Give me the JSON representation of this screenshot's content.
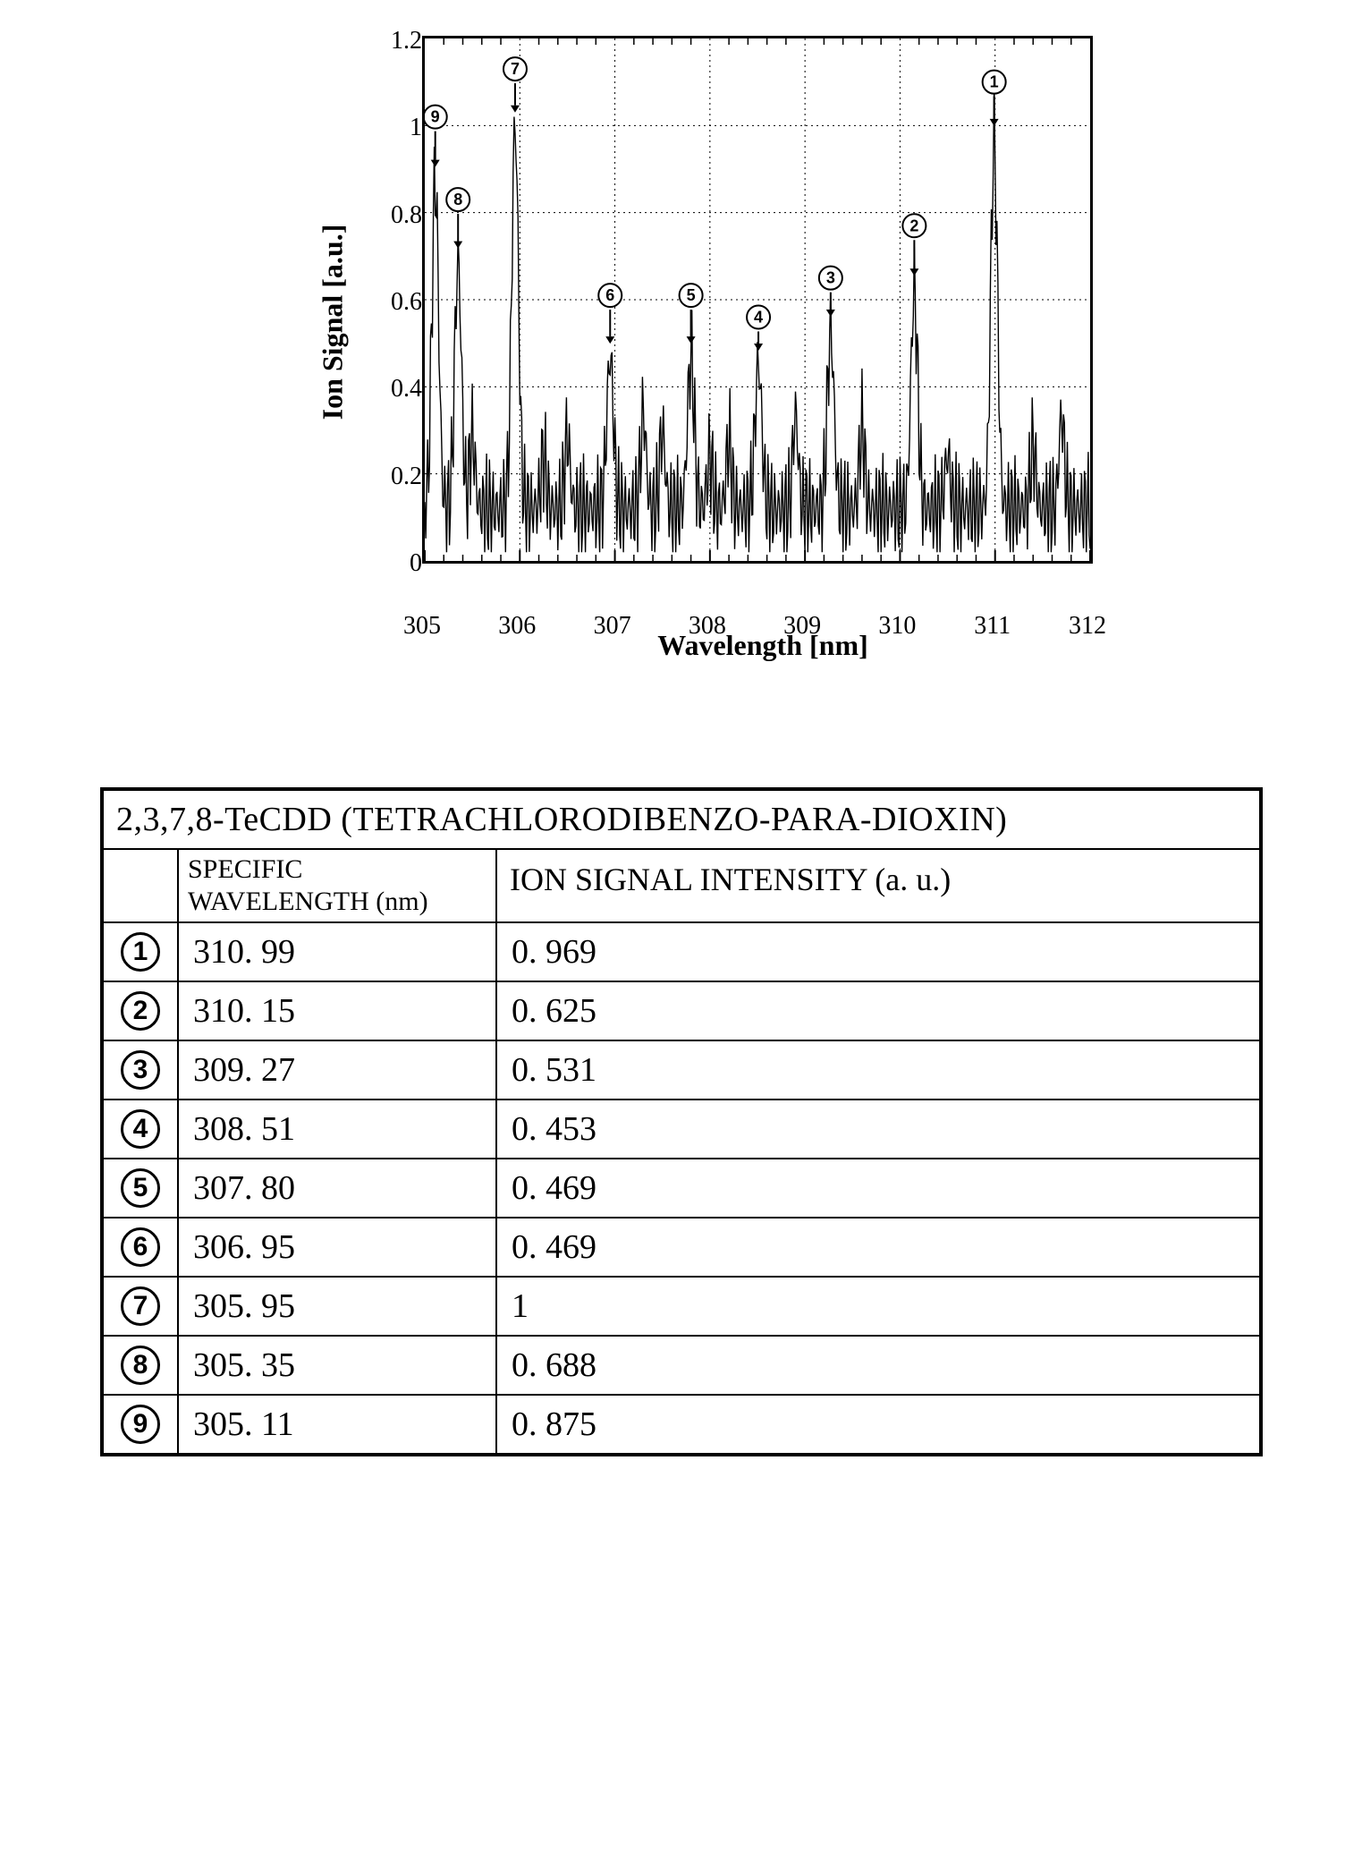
{
  "chart": {
    "type": "line-spectrum",
    "ylabel": "Ion Signal [a.u.]",
    "xlabel": "Wavelength [nm]",
    "xlim": [
      305,
      312
    ],
    "ylim": [
      0,
      1.2
    ],
    "xticks": [
      305,
      306,
      307,
      308,
      309,
      310,
      311,
      312
    ],
    "yticks": [
      0,
      0.2,
      0.4,
      0.6,
      0.8,
      1,
      1.2
    ],
    "grid_color": "#000000",
    "grid_dash": "2,4",
    "line_color": "#000000",
    "line_width": 1.4,
    "background_color": "#ffffff",
    "marker_labels": [
      "①",
      "②",
      "③",
      "④",
      "⑤",
      "⑥",
      "⑦",
      "⑧",
      "⑨"
    ],
    "peaks": [
      {
        "label": "①",
        "wavelength": 310.99,
        "intensity": 0.969,
        "marker_y": 1.1
      },
      {
        "label": "②",
        "wavelength": 310.15,
        "intensity": 0.625,
        "marker_y": 0.77
      },
      {
        "label": "③",
        "wavelength": 309.27,
        "intensity": 0.531,
        "marker_y": 0.65
      },
      {
        "label": "④",
        "wavelength": 308.51,
        "intensity": 0.453,
        "marker_y": 0.56
      },
      {
        "label": "⑤",
        "wavelength": 307.8,
        "intensity": 0.469,
        "marker_y": 0.61
      },
      {
        "label": "⑥",
        "wavelength": 306.95,
        "intensity": 0.469,
        "marker_y": 0.61
      },
      {
        "label": "⑦",
        "wavelength": 305.95,
        "intensity": 1.0,
        "marker_y": 1.13
      },
      {
        "label": "⑧",
        "wavelength": 305.35,
        "intensity": 0.688,
        "marker_y": 0.83
      },
      {
        "label": "⑨",
        "wavelength": 305.11,
        "intensity": 0.875,
        "marker_y": 1.02
      }
    ],
    "noise_floor": 0.12,
    "noise_amplitude": 0.09,
    "minor_ticks_per_major_x": 5,
    "minor_ticks_per_major_y": 2,
    "peak_half_width_nm": 0.05
  },
  "table": {
    "title": "2,3,7,8-TeCDD (TETRACHLORODIBENZO-PARA-DIOXIN)",
    "header_wavelength": "SPECIFIC WAVELENGTH (nm)",
    "header_intensity": "ION SIGNAL INTENSITY (a. u.)",
    "rows": [
      {
        "idx": "①",
        "wavelength": "310. 99",
        "intensity": "0. 969"
      },
      {
        "idx": "②",
        "wavelength": "310. 15",
        "intensity": "0. 625"
      },
      {
        "idx": "③",
        "wavelength": "309. 27",
        "intensity": "0. 531"
      },
      {
        "idx": "④",
        "wavelength": "308. 51",
        "intensity": "0. 453"
      },
      {
        "idx": "⑤",
        "wavelength": "307. 80",
        "intensity": "0. 469"
      },
      {
        "idx": "⑥",
        "wavelength": "306. 95",
        "intensity": "0. 469"
      },
      {
        "idx": "⑦",
        "wavelength": "305. 95",
        "intensity": "1"
      },
      {
        "idx": "⑧",
        "wavelength": "305. 35",
        "intensity": "0. 688"
      },
      {
        "idx": "⑨",
        "wavelength": "305. 11",
        "intensity": "0. 875"
      }
    ]
  }
}
